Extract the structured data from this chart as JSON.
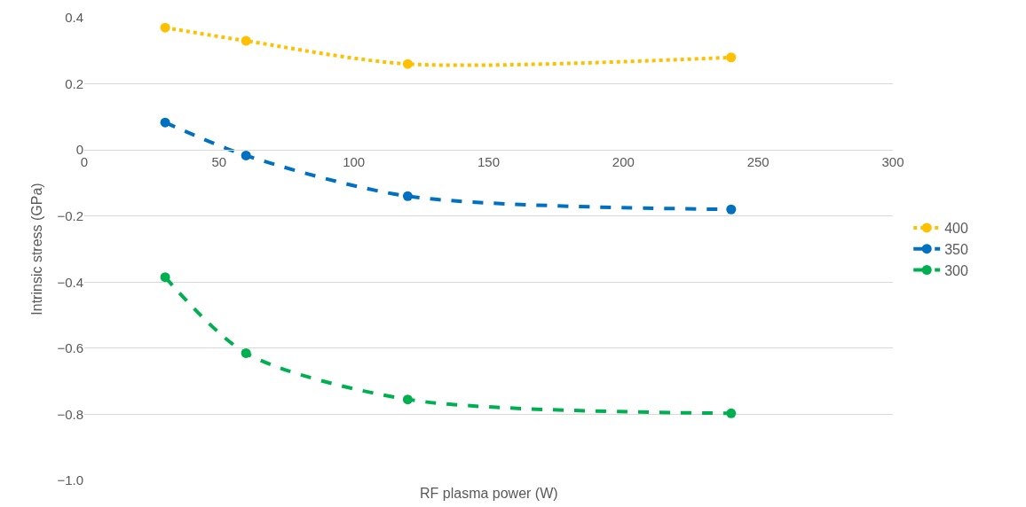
{
  "chart_data": {
    "type": "line",
    "xlabel": "RF plasma power (W)",
    "ylabel": "Intrinsic stress (GPa)",
    "x": [
      30,
      60,
      120,
      240
    ],
    "series": [
      {
        "name": "400",
        "color": "#ffc000",
        "line_style": "dotted",
        "values": [
          0.37,
          0.33,
          0.26,
          0.28
        ]
      },
      {
        "name": "350",
        "color": "#0070c0",
        "line_style": "dashed",
        "values": [
          0.083,
          -0.017,
          -0.14,
          -0.18
        ]
      },
      {
        "name": "300",
        "color": "#00b050",
        "line_style": "dashed",
        "values": [
          -0.385,
          -0.615,
          -0.755,
          -0.797
        ]
      }
    ],
    "xlim": [
      0,
      300
    ],
    "xticks": [
      0,
      50,
      100,
      150,
      200,
      250,
      300
    ],
    "ylim": [
      -1.0,
      0.4
    ],
    "yticks": [
      {
        "value": -1.0,
        "label": "−1.0"
      },
      {
        "value": -0.8,
        "label": "−0.8"
      },
      {
        "value": -0.6,
        "label": "−0.6"
      },
      {
        "value": -0.4,
        "label": "−0.4"
      },
      {
        "value": -0.2,
        "label": "−0.2"
      },
      {
        "value": 0,
        "label": "0"
      },
      {
        "value": 0.2,
        "label": "0.2"
      },
      {
        "value": 0.4,
        "label": "0.4"
      }
    ],
    "grid": "y",
    "legend": "right",
    "marker": "circle"
  }
}
